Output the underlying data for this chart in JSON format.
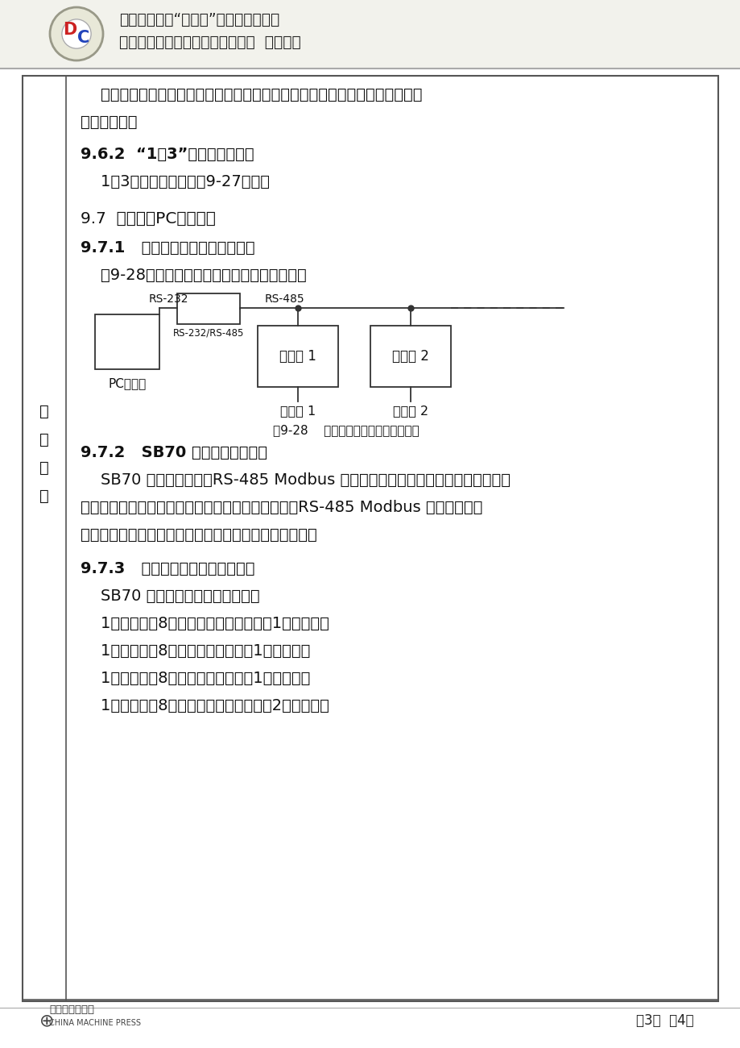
{
  "bg_color": "#ffffff",
  "header_title1": "普通高等教育“十一五”国家级规划教材",
  "header_title2": "《变频器原理及应用（第２版）》  电子教案",
  "footer_text": "第3页  共4页",
  "section_label_chars": [
    "教",
    "学",
    "内",
    "容"
  ],
  "para1_line1": "    反之，当用水减少时，则先从１号泵，然后２号泵依次退出工作，完成一次加",
  "para1_line2": "减泵的循环。",
  "section962_title": "9.6.2  “1控3”供水电路原理图",
  "section962_body": "    1控3供水系统电路如图9-27所示。",
  "section97_title": "9.7  变频器与PC机的通信",
  "section971_title": "9.7.1   计算机与变频器的通信连接",
  "section971_body": "    图9-28所示为计算机与变频器硬件连接框图。",
  "fig928_caption": "图9-28    计算机与变频器硬件连接框图",
  "section972_title": "9.7.2   SB70 变频器的通信协议",
  "section972_body1": "    SB70 变频器使用的是RS-485 Modbus 协议，该协议包含三个层次：物理层、数",
  "section972_body2": "据链路层和应用层。物理层和数据链路层采取了基于RS-485 Modbus 协议的接口方",
  "section972_body3": "式，应用层即控制变频器运行、停止、参数读写等操作。",
  "section973_title": "9.7.3   计算机与变频器的数据格式",
  "section973_body0": "    SB70 变频器使用的数据格式有：",
  "section973_item1": "    1个起始位，8个数据位，无奇偶校验，1个停止位。",
  "section973_item2": "    1个起始位，8个数据位，偶校验，1个停止位。",
  "section973_item3": "    1个起始位，8个数据位，奇校验，1个停止位。",
  "section973_item4": "    1个起始位，8个数据位，无奇偶校验，2个停止位。",
  "pc_label": "PC工控机",
  "conv_label": "RS-232/RS-485",
  "rs232_label": "RS-232",
  "rs485_label": "RS-485",
  "vfd1_label": "变频器 1",
  "vfd2_label": "变频器 2",
  "motor1_label": "电动机 1",
  "motor2_label": "电动机 2"
}
